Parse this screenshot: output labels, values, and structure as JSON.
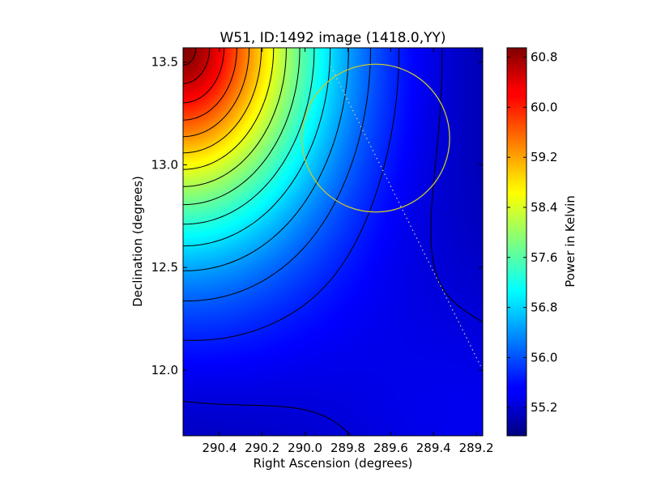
{
  "chart_data": {
    "type": "heatmap",
    "title": "W51, ID:1492 image (1418.0,YY)",
    "xlabel": "Right Ascension (degrees)",
    "ylabel": "Declination (degrees)",
    "xlim": [
      290.57,
      289.17
    ],
    "ylim": [
      11.68,
      13.57
    ],
    "x_ticks": [
      290.4,
      290.2,
      290.0,
      289.8,
      289.6,
      289.4,
      289.2
    ],
    "x_tick_labels": [
      "290.4",
      "290.2",
      "290.0",
      "289.8",
      "289.6",
      "289.4",
      "289.2"
    ],
    "y_ticks": [
      12.0,
      12.5,
      13.0,
      13.5
    ],
    "y_tick_labels": [
      "12.0",
      "12.5",
      "13.0",
      "13.5"
    ],
    "colormap": "jet",
    "colorbar": {
      "label": "Power in Kelvin",
      "vmin": 54.75,
      "vmax": 60.95,
      "ticks": [
        55.2,
        56.0,
        56.8,
        57.6,
        58.4,
        59.2,
        60.0,
        60.8
      ],
      "tick_labels": [
        "55.2",
        "56.0",
        "56.8",
        "57.6",
        "58.4",
        "59.2",
        "60.0",
        "60.8"
      ]
    },
    "field": {
      "description": "intensity peaks at top-left corner (~60.9 K) and decreases diagonally toward a minimum valley (~54.8 K), rising slightly toward the bottom-right",
      "peak_value": 60.9,
      "min_value": 54.8,
      "contour_levels": [
        54.9,
        55.3,
        55.7,
        56.1,
        56.5,
        56.9,
        57.3,
        57.7,
        58.1,
        58.5,
        58.9,
        59.3,
        59.7,
        60.1,
        60.5,
        60.8
      ]
    },
    "circle": {
      "center_ra": 289.67,
      "center_dec": 13.13,
      "radius_deg": 0.36,
      "color": "#c8c832"
    },
    "dotted_line": {
      "from": [
        289.88,
        13.48
      ],
      "to": [
        289.18,
        12.02
      ],
      "color": "#d8d8a0"
    }
  }
}
